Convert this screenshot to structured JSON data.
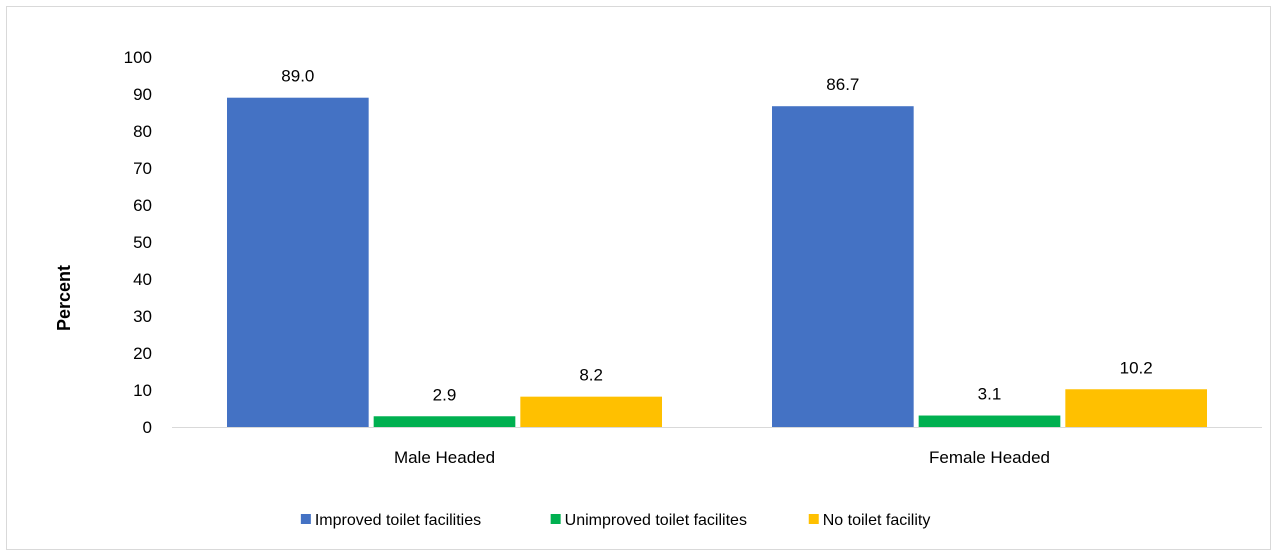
{
  "chart_data": {
    "type": "bar",
    "title": "",
    "xlabel": "",
    "ylabel": "Percent",
    "ylim": [
      0,
      100
    ],
    "ytick_step": 10,
    "grid": false,
    "legend_position": "bottom",
    "categories": [
      "Male Headed",
      "Female Headed"
    ],
    "series": [
      {
        "name": "Improved toilet facilities",
        "color": "#4472C4",
        "values": [
          89.0,
          86.7
        ],
        "labels": [
          "89.0",
          "86.7"
        ]
      },
      {
        "name": "Unimproved toilet facilites",
        "color": "#00B050",
        "values": [
          2.9,
          3.1
        ],
        "labels": [
          "2.9",
          "3.1"
        ]
      },
      {
        "name": "No toilet facility",
        "color": "#FFC000",
        "values": [
          8.2,
          10.2
        ],
        "labels": [
          "8.2",
          "10.2"
        ]
      }
    ]
  }
}
